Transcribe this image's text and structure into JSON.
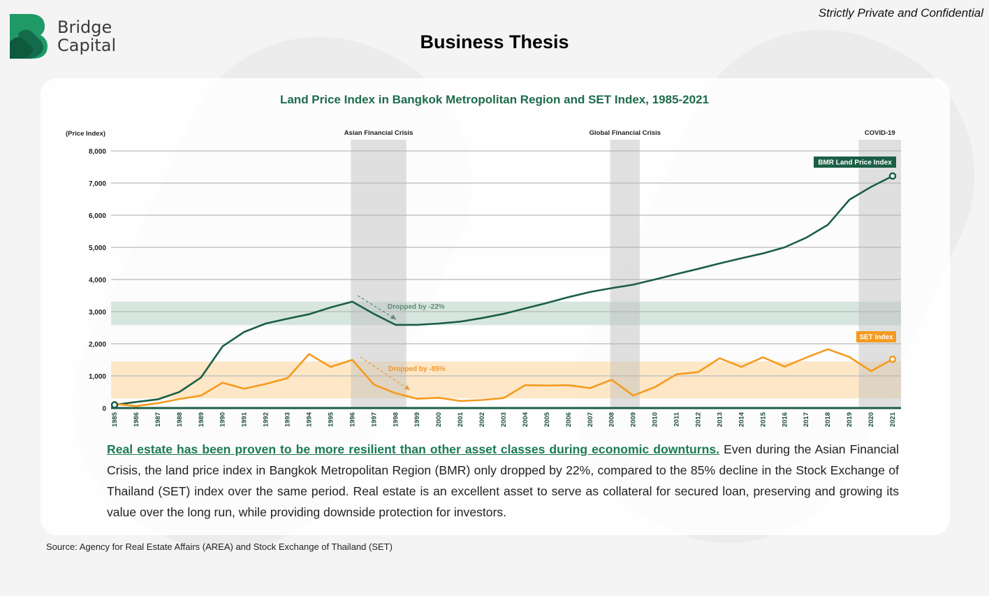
{
  "header": {
    "logo_text_line1": "Bridge",
    "logo_text_line2": "Capital",
    "confidential": "Strictly Private and Confidential",
    "title": "Business Thesis"
  },
  "colors": {
    "bmr": "#1b5e45",
    "set": "#f59a1e",
    "green_band": "#d2e3da",
    "orange_band": "#fde4c1",
    "crisis": "#e2e2e2"
  },
  "chart_data": {
    "type": "line",
    "title": "Land Price Index in Bangkok Metropolitan Region and SET Index, 1985-2021",
    "ylabel": "(Price Index)",
    "ylim": [
      0,
      8000
    ],
    "yticks": [
      "0",
      "1,000",
      "2,000",
      "3,000",
      "4,000",
      "5,000",
      "6,000",
      "7,000",
      "8,000"
    ],
    "grid": true,
    "x": [
      1985,
      1986,
      1987,
      1988,
      1989,
      1990,
      1991,
      1992,
      1993,
      1994,
      1995,
      1996,
      1997,
      1998,
      1999,
      2000,
      2001,
      2002,
      2003,
      2004,
      2005,
      2006,
      2007,
      2008,
      2009,
      2010,
      2011,
      2012,
      2013,
      2014,
      2015,
      2016,
      2017,
      2018,
      2019,
      2020,
      2021
    ],
    "series": [
      {
        "name": "BMR Land Price Index",
        "values": [
          100,
          190,
          270,
          500,
          950,
          1920,
          2370,
          2630,
          2780,
          2920,
          3130,
          3310,
          2930,
          2590,
          2590,
          2630,
          2690,
          2800,
          2930,
          3100,
          3270,
          3450,
          3610,
          3730,
          3840,
          4000,
          4170,
          4330,
          4500,
          4660,
          4810,
          5000,
          5300,
          5700,
          6480,
          6880,
          7220
        ]
      },
      {
        "name": "SET Index",
        "values": [
          130,
          60,
          150,
          280,
          390,
          790,
          600,
          750,
          930,
          1680,
          1280,
          1500,
          730,
          460,
          290,
          320,
          220,
          250,
          310,
          710,
          700,
          710,
          620,
          880,
          390,
          650,
          1050,
          1120,
          1550,
          1280,
          1580,
          1290,
          1570,
          1830,
          1590,
          1150,
          1520
        ]
      }
    ],
    "shaded_periods": [
      {
        "label": "Asian Financial Crisis",
        "from": 1996,
        "to": 1998.5
      },
      {
        "label": "Global Financial Crisis",
        "from": 2008,
        "to": 2009.3
      },
      {
        "label": "COVID-19",
        "from": 2019.5,
        "to": 2021.4
      }
    ],
    "bands": [
      {
        "series": "BMR Land Price Index",
        "from": 2580,
        "to": 3310
      },
      {
        "series": "SET Index",
        "from": 300,
        "to": 1450
      }
    ],
    "annotations": [
      {
        "text": "Dropped by -22%",
        "series": "BMR Land Price Index"
      },
      {
        "text": "Dropped by -85%",
        "series": "SET Index"
      }
    ]
  },
  "paragraph": {
    "highlight": "Real estate has been proven to be more resilient than other asset classes during economic downturns.",
    "body": " Even during the Asian Financial Crisis, the land price index in Bangkok Metropolitan Region (BMR) only dropped by 22%, compared to the 85% decline in the Stock Exchange of Thailand (SET) index over the same period. Real estate is an excellent asset to serve as collateral for secured loan, preserving and growing its value over the long run, while providing downside protection for investors."
  },
  "source": "Source: Agency for Real Estate Affairs (AREA) and Stock Exchange of Thailand (SET)"
}
